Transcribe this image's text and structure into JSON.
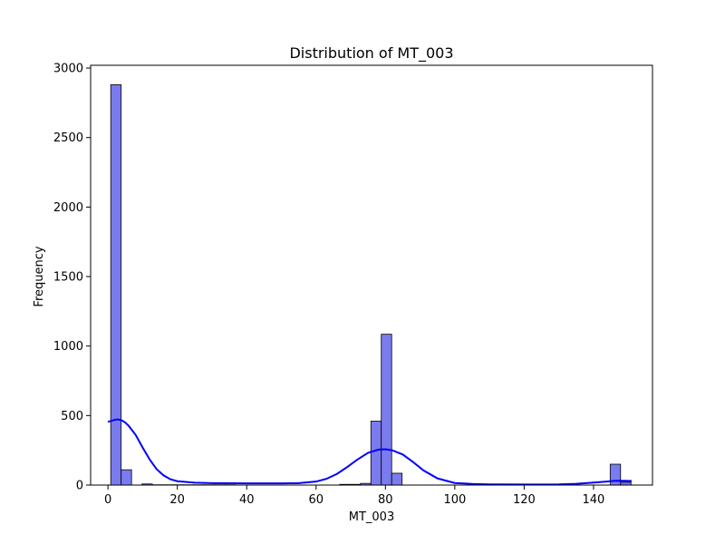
{
  "chart_data": {
    "type": "histogram",
    "title": "Distribution of MT_003",
    "xlabel": "MT_003",
    "ylabel": "Frequency",
    "xlim": [
      -5,
      157
    ],
    "ylim": [
      0,
      3020
    ],
    "xticks": [
      0,
      20,
      40,
      60,
      80,
      100,
      120,
      140
    ],
    "yticks": [
      0,
      500,
      1000,
      1500,
      2000,
      2500,
      3000
    ],
    "bin_start": 0.8,
    "bin_width": 3.0,
    "counts": [
      2880,
      110,
      0,
      8,
      2,
      2,
      2,
      2,
      2,
      2,
      2,
      2,
      0,
      0,
      0,
      0,
      0,
      0,
      0,
      0,
      0,
      0,
      5,
      5,
      12,
      460,
      1085,
      85,
      0,
      0,
      0,
      0,
      0,
      0,
      0,
      0,
      0,
      0,
      0,
      0,
      0,
      0,
      0,
      0,
      0,
      0,
      0,
      0,
      150,
      20
    ],
    "kde": {
      "x": [
        0,
        1,
        2,
        3,
        4,
        5,
        6,
        8,
        10,
        12,
        14,
        16,
        18,
        20,
        25,
        30,
        40,
        50,
        55,
        60,
        63,
        66,
        69,
        72,
        75,
        78,
        80,
        82,
        85,
        88,
        91,
        95,
        100,
        105,
        110,
        120,
        130,
        135,
        140,
        143,
        146,
        148,
        150,
        151
      ],
      "y": [
        455,
        462,
        470,
        472,
        465,
        450,
        425,
        360,
        270,
        185,
        115,
        70,
        42,
        28,
        17,
        14,
        12,
        12,
        14,
        25,
        45,
        80,
        130,
        185,
        232,
        255,
        258,
        250,
        220,
        165,
        105,
        48,
        15,
        8,
        5,
        4,
        5,
        9,
        18,
        24,
        30,
        31,
        30,
        29
      ]
    },
    "bar_color": "#7b7bf0",
    "bar_edge_color": "#000000",
    "kde_color": "#0000ff",
    "grid": false,
    "legend": "none"
  }
}
